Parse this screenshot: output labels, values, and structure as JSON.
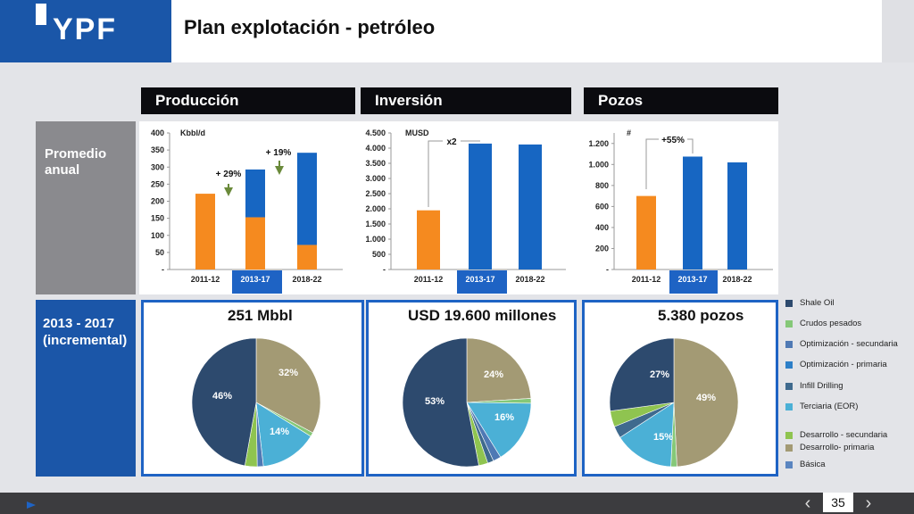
{
  "header": {
    "logo": "YPF",
    "title": "Plan explotación - petróleo"
  },
  "sections": {
    "production": "Producción",
    "investment": "Inversión",
    "wells": "Pozos"
  },
  "side_labels": {
    "annual_line1": "Promedio",
    "annual_line2": "anual",
    "incremental_line1": "2013 - 2017",
    "incremental_line2": "(incremental)"
  },
  "pie_titles": {
    "production": "251 Mbbl",
    "investment": "USD 19.600 millones",
    "wells": "5.380 pozos"
  },
  "page_number": "35",
  "colors": {
    "orange": "#f58a1f",
    "blue": "#1766c2",
    "shale_oil": "#2d4a6e",
    "crudos_pesados": "#85c878",
    "opt_secundaria": "#4f79b4",
    "opt_primaria": "#2d7fc8",
    "infill": "#3f6a8e",
    "terciaria": "#4bb0d6",
    "des_secundaria": "#8fc450",
    "des_primaria": "#a39a74",
    "basica": "#5a85c0"
  },
  "chart_data": [
    {
      "type": "bar",
      "stacked": true,
      "unit_label": "Kbbl/d",
      "categories": [
        "2011-12",
        "2013-17",
        "2018-22"
      ],
      "ylim": [
        0,
        400
      ],
      "yticks": [
        "-",
        "50",
        "100",
        "150",
        "200",
        "250",
        "300",
        "350",
        "400"
      ],
      "series": [
        {
          "values": [
            222,
            153,
            72
          ],
          "color": "orange"
        },
        {
          "values": [
            0,
            140,
            270
          ],
          "color": "blue"
        }
      ],
      "annotations": [
        "+ 29%",
        "+ 19%"
      ]
    },
    {
      "type": "bar",
      "unit_label": "MUSD",
      "categories": [
        "2011-12",
        "2013-17",
        "2018-22"
      ],
      "ylim": [
        0,
        4500
      ],
      "yticks": [
        "-",
        "500",
        "1.000",
        "1.500",
        "2.000",
        "2.500",
        "3.000",
        "3.500",
        "4.000",
        "4.500"
      ],
      "series": [
        {
          "values": [
            1950,
            4150,
            4120
          ],
          "colors": [
            "orange",
            "blue",
            "blue"
          ]
        }
      ],
      "annotations": [
        "x2"
      ]
    },
    {
      "type": "bar",
      "unit_label": "#",
      "categories": [
        "2011-12",
        "2013-17",
        "2018-22"
      ],
      "ylim": [
        0,
        1300
      ],
      "yticks": [
        "-",
        "200",
        "400",
        "600",
        "800",
        "1.000",
        "1.200"
      ],
      "series": [
        {
          "values": [
            700,
            1075,
            1020
          ],
          "colors": [
            "orange",
            "blue",
            "blue"
          ]
        }
      ],
      "annotations": [
        "+55%"
      ]
    },
    {
      "type": "pie",
      "title": "251 Mbbl",
      "slices": [
        {
          "key": "des_primaria",
          "value": 32,
          "label": "32%"
        },
        {
          "key": "crudos_pesados",
          "value": 1
        },
        {
          "key": "terciaria",
          "value": 14,
          "label": "14%"
        },
        {
          "key": "opt_secundaria",
          "value": 1.5
        },
        {
          "key": "des_secundaria",
          "value": 3
        },
        {
          "key": "shale_oil",
          "value": 46,
          "label": "46%"
        }
      ]
    },
    {
      "type": "pie",
      "title": "USD 19.600 millones",
      "slices": [
        {
          "key": "des_primaria",
          "value": 24,
          "label": "24%"
        },
        {
          "key": "crudos_pesados",
          "value": 1.2
        },
        {
          "key": "terciaria",
          "value": 16,
          "label": "16%"
        },
        {
          "key": "opt_secundaria",
          "value": 2
        },
        {
          "key": "infill",
          "value": 1.5
        },
        {
          "key": "des_secundaria",
          "value": 2.3
        },
        {
          "key": "shale_oil",
          "value": 53,
          "label": "53%"
        }
      ]
    },
    {
      "type": "pie",
      "title": "5.380 pozos",
      "slices": [
        {
          "key": "des_primaria",
          "value": 49,
          "label": "49%"
        },
        {
          "key": "crudos_pesados",
          "value": 1.5
        },
        {
          "key": "terciaria",
          "value": 15,
          "label": "15%"
        },
        {
          "key": "infill",
          "value": 3
        },
        {
          "key": "des_secundaria",
          "value": 4
        },
        {
          "key": "shale_oil",
          "value": 27,
          "label": "27%"
        }
      ]
    }
  ],
  "legend": [
    {
      "key": "shale_oil",
      "label": "Shale Oil"
    },
    {
      "key": "crudos_pesados",
      "label": "Crudos pesados"
    },
    {
      "key": "opt_secundaria",
      "label": "Optimización - secundaria"
    },
    {
      "key": "opt_primaria",
      "label": "Optimización - primaria"
    },
    {
      "key": "infill",
      "label": "Infill Drilling"
    },
    {
      "key": "terciaria",
      "label": "Terciaria (EOR)"
    },
    {
      "key": "des_secundaria",
      "label": "Desarrollo - secundaria"
    },
    {
      "key": "des_primaria",
      "label": "Desarrollo- primaria"
    },
    {
      "key": "basica",
      "label": "Básica"
    }
  ]
}
